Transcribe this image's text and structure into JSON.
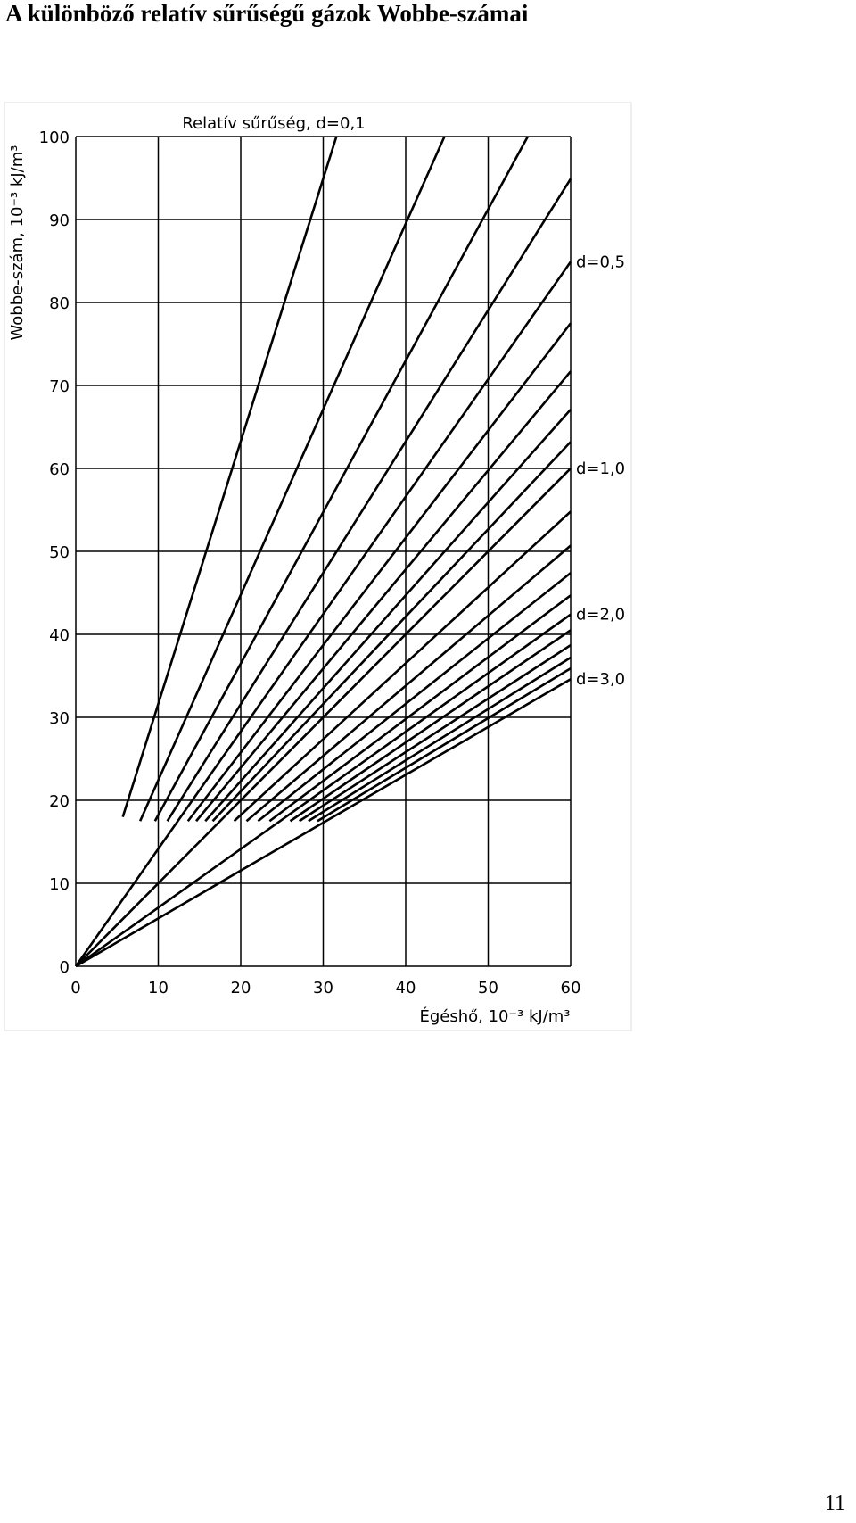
{
  "title": "A különböző relatív sűrűségű gázok Wobbe-számai",
  "page_number": "11",
  "chart_data": {
    "type": "line",
    "title": "Relatív sűrűség, d=0,1",
    "x_label": "Égéshő, 10⁻³ kJ/m³",
    "y_label": "Wobbe-szám, 10⁻³ kJ/m³",
    "annotations": [
      "d=0,5",
      "d=1,0",
      "d=2,0",
      "d=3,0"
    ],
    "xlim": [
      0,
      60
    ],
    "ylim": [
      0,
      100
    ],
    "xticks": [
      0,
      10,
      20,
      30,
      40,
      50,
      60
    ],
    "yticks": [
      0,
      10,
      20,
      30,
      40,
      50,
      60,
      70,
      80,
      90,
      100
    ],
    "grid": true,
    "color": "#000000",
    "series": [
      {
        "x": [
          5.7,
          31.6
        ],
        "values": [
          18,
          100
        ]
      },
      {
        "x": [
          7.8,
          44.7
        ],
        "values": [
          17.5,
          100
        ]
      },
      {
        "x": [
          9.6,
          54.8
        ],
        "values": [
          17.5,
          100
        ]
      },
      {
        "x": [
          11.1,
          60
        ],
        "values": [
          17.5,
          94.9
        ]
      },
      {
        "x": [
          0,
          60
        ],
        "values": [
          0,
          84.9
        ]
      },
      {
        "x": [
          13.6,
          60
        ],
        "values": [
          17.5,
          77.5
        ]
      },
      {
        "x": [
          14.6,
          60
        ],
        "values": [
          17.5,
          71.7
        ]
      },
      {
        "x": [
          15.7,
          60
        ],
        "values": [
          17.5,
          67.1
        ]
      },
      {
        "x": [
          16.6,
          60
        ],
        "values": [
          17.5,
          63.2
        ]
      },
      {
        "x": [
          0,
          60
        ],
        "values": [
          0,
          60
        ]
      },
      {
        "x": [
          19.2,
          60
        ],
        "values": [
          17.5,
          54.8
        ]
      },
      {
        "x": [
          20.7,
          60
        ],
        "values": [
          17.5,
          50.7
        ]
      },
      {
        "x": [
          22.1,
          60
        ],
        "values": [
          17.5,
          47.4
        ]
      },
      {
        "x": [
          23.5,
          60
        ],
        "values": [
          17.5,
          44.7
        ]
      },
      {
        "x": [
          0,
          60
        ],
        "values": [
          0,
          42.4
        ]
      },
      {
        "x": [
          26,
          60
        ],
        "values": [
          17.5,
          40.5
        ]
      },
      {
        "x": [
          27.1,
          60
        ],
        "values": [
          17.5,
          38.7
        ]
      },
      {
        "x": [
          28.2,
          60
        ],
        "values": [
          17.5,
          37.2
        ]
      },
      {
        "x": [
          29.3,
          60
        ],
        "values": [
          17.5,
          35.9
        ]
      },
      {
        "x": [
          0,
          60
        ],
        "values": [
          0,
          34.6
        ]
      }
    ]
  }
}
